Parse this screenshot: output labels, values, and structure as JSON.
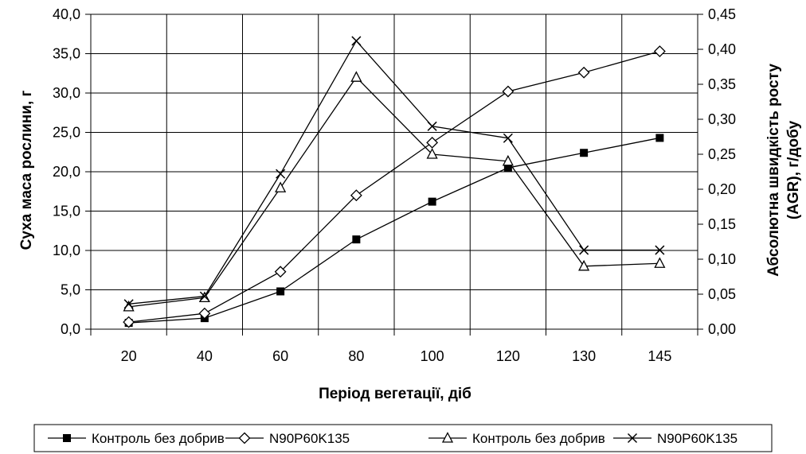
{
  "chart_data": {
    "type": "line",
    "xlabel": "Період вегетації, діб",
    "ylabel_left": "Суха маса рослини, г",
    "ylabel_right_line1": "Абсолютна швидкість росту",
    "ylabel_right_line2": "(AGR), г/добу",
    "categories": [
      "20",
      "40",
      "60",
      "80",
      "100",
      "120",
      "130",
      "145"
    ],
    "y_left": {
      "min": 0,
      "max": 40,
      "step": 5,
      "tick_labels": [
        "0,0",
        "5,0",
        "10,0",
        "15,0",
        "20,0",
        "25,0",
        "30,0",
        "35,0",
        "40,0"
      ]
    },
    "y_right": {
      "min": 0,
      "max": 0.45,
      "step": 0.05,
      "tick_labels": [
        "0,00",
        "0,05",
        "0,10",
        "0,15",
        "0,20",
        "0,25",
        "0,30",
        "0,35",
        "0,40",
        "0,45"
      ]
    },
    "grid": true,
    "legend_position": "bottom",
    "series": [
      {
        "name": "Контроль без добрив",
        "axis": "left",
        "marker": "filled-square",
        "values": [
          0.8,
          1.4,
          4.8,
          11.4,
          16.2,
          20.5,
          22.4,
          24.3
        ]
      },
      {
        "name": "N90P60K135",
        "axis": "left",
        "marker": "open-diamond",
        "values": [
          0.9,
          2.0,
          7.3,
          17.0,
          23.7,
          30.2,
          32.6,
          35.3
        ]
      },
      {
        "name": "Контроль без добрив",
        "axis": "right",
        "marker": "open-triangle",
        "values": [
          0.032,
          0.045,
          0.202,
          0.36,
          0.25,
          0.24,
          0.09,
          0.094
        ]
      },
      {
        "name": "N90P60K135",
        "axis": "right",
        "marker": "cross",
        "values": [
          0.036,
          0.047,
          0.222,
          0.412,
          0.29,
          0.273,
          0.113,
          0.113
        ]
      }
    ]
  }
}
